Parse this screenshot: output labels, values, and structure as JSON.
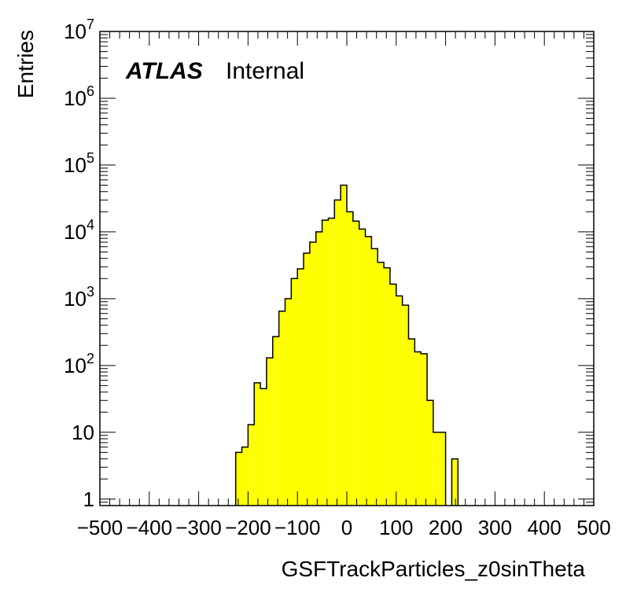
{
  "chart_data": {
    "type": "bar",
    "title": "",
    "xlabel": "GSFTrackParticles_z0sinTheta",
    "ylabel": "Entries",
    "xlim": [
      -500,
      500
    ],
    "ylim": [
      0.8,
      10000000
    ],
    "y_scale": "log",
    "grid": false,
    "fill_color": "#ffff00",
    "line_color": "#000000",
    "annotation": {
      "bold": "ATLAS",
      "normal": "Internal"
    },
    "x_tick_labels": [
      {
        "value": -500,
        "label": "−500"
      },
      {
        "value": -400,
        "label": "−400"
      },
      {
        "value": -300,
        "label": "−300"
      },
      {
        "value": -200,
        "label": "−200"
      },
      {
        "value": -100,
        "label": "−100"
      },
      {
        "value": 0,
        "label": "0"
      },
      {
        "value": 100,
        "label": "100"
      },
      {
        "value": 200,
        "label": "200"
      },
      {
        "value": 300,
        "label": "300"
      },
      {
        "value": 400,
        "label": "400"
      },
      {
        "value": 500,
        "label": "500"
      }
    ],
    "y_tick_labels": [
      {
        "value": 1,
        "base": "1",
        "exp": ""
      },
      {
        "value": 10,
        "base": "10",
        "exp": ""
      },
      {
        "value": 100,
        "base": "10",
        "exp": "2"
      },
      {
        "value": 1000,
        "base": "10",
        "exp": "3"
      },
      {
        "value": 10000,
        "base": "10",
        "exp": "4"
      },
      {
        "value": 100000,
        "base": "10",
        "exp": "5"
      },
      {
        "value": 1000000,
        "base": "10",
        "exp": "6"
      },
      {
        "value": 10000000,
        "base": "10",
        "exp": "7"
      }
    ],
    "bin_width": 12.5,
    "bin_low_edges": [
      -225,
      -212.5,
      -200,
      -187.5,
      -175,
      -162.5,
      -150,
      -137.5,
      -125,
      -112.5,
      -100,
      -87.5,
      -75,
      -62.5,
      -50,
      -37.5,
      -25,
      -12.5,
      0,
      12.5,
      25,
      37.5,
      50,
      62.5,
      75,
      87.5,
      100,
      112.5,
      125,
      137.5,
      150,
      162.5,
      175,
      187.5,
      200,
      212.5
    ],
    "values": [
      5,
      6,
      13,
      55,
      45,
      130,
      270,
      650,
      1000,
      2000,
      2800,
      4800,
      7000,
      10000,
      15000,
      16000,
      30000,
      50000,
      20000,
      14500,
      11000,
      8500,
      5600,
      3500,
      2900,
      1650,
      1100,
      800,
      250,
      160,
      150,
      30,
      10,
      10,
      0,
      4
    ]
  }
}
